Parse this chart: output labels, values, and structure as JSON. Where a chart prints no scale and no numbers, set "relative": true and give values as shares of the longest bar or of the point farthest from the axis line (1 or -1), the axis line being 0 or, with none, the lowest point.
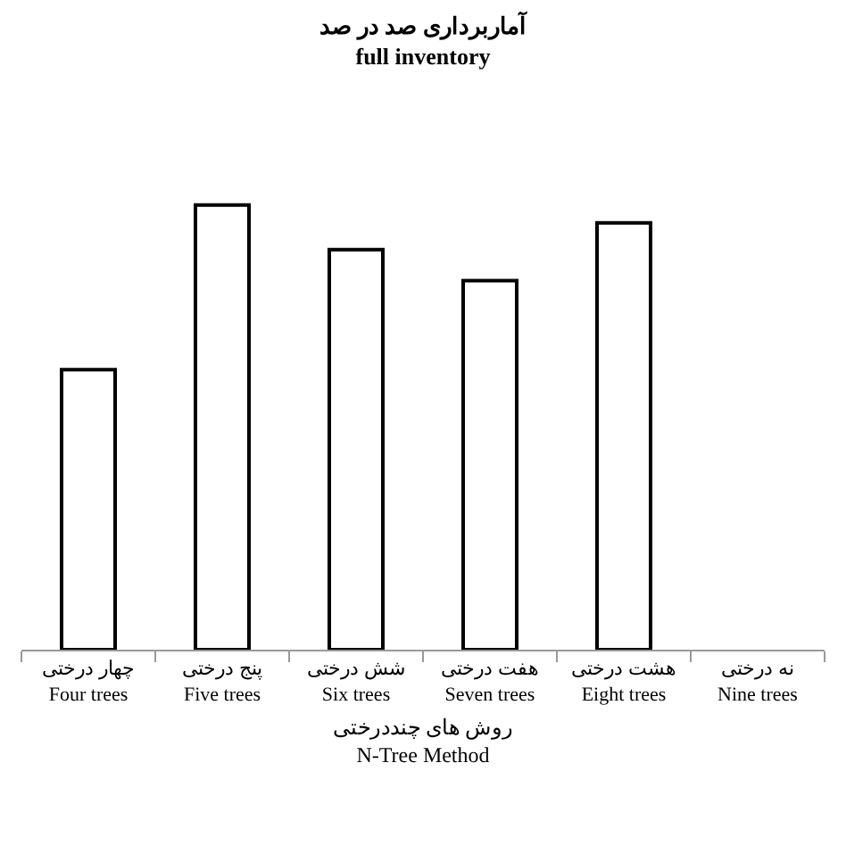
{
  "chart_data": {
    "type": "bar",
    "title": "آماربرداری صد در صد\nfull inventory",
    "xlabel": "روش های چنددرختی\nN-Tree Method",
    "categories": [
      "چهار درختی\nFour trees",
      "پنج درختی\nFive trees",
      "شش درختی\nSix trees",
      "هفت درختی\nSeven trees",
      "هشت درختی\nEight trees",
      "نه درختی\nNine trees"
    ],
    "values": [
      0.63,
      1,
      0.9,
      0.83,
      0.96,
      null
    ],
    "color": "#ffffff",
    "relative": true
  }
}
